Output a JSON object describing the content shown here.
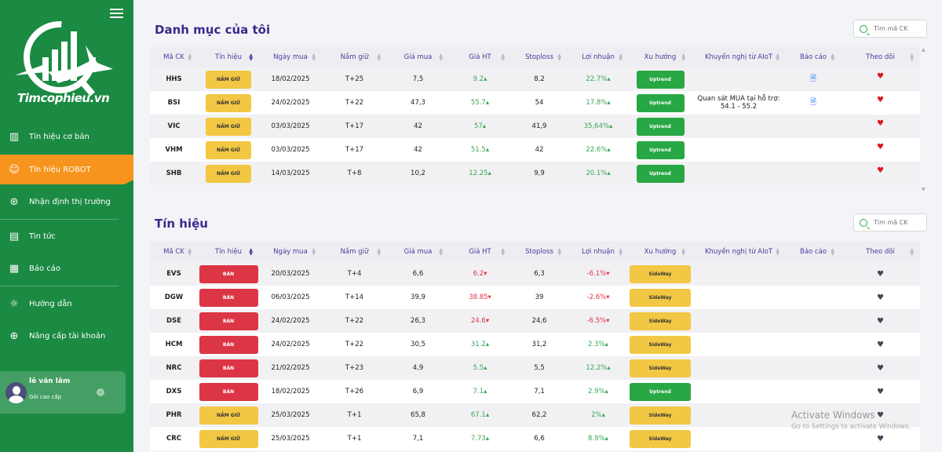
{
  "brand": {
    "name": "Timcophieu.vn"
  },
  "sidebar": {
    "items": [
      {
        "label": "Tín hiệu cơ bản",
        "icon": "bar-chart-icon"
      },
      {
        "label": "Tín hiệu ROBOT",
        "icon": "robot-icon",
        "active": true
      },
      {
        "label": "Nhận định thị trường",
        "icon": "market-icon"
      },
      {
        "label": "Tin tức",
        "icon": "news-icon"
      },
      {
        "label": "Báo cáo",
        "icon": "report-icon"
      },
      {
        "label": "Hướng dẫn",
        "icon": "lightbulb-icon"
      },
      {
        "label": "Nâng cấp tài khoản",
        "icon": "upgrade-icon"
      }
    ],
    "user": {
      "name": "lê văn lâm",
      "plan": "Gói cao cấp"
    }
  },
  "colors": {
    "sidebar": "#1b8a43",
    "active": "#f7941d",
    "title": "#3b2a8c",
    "up": "#3aa655",
    "down": "#e0334a"
  },
  "columns": [
    "Mã CK",
    "Tín hiệu",
    "Ngày mua",
    "Nắm giữ",
    "Giá mua",
    "Giá HT",
    "Stoploss",
    "Lợi nhuận",
    "Xu hướng",
    "Khuyến nghị từ AIoT",
    "Báo cáo",
    "Theo dõi"
  ],
  "portfolio": {
    "title": "Danh mục của tôi",
    "search_placeholder": "Tìm mã CK",
    "rows": [
      {
        "ck": "HHS",
        "signal": "NẮM GIỮ",
        "date": "18/02/2025",
        "hold": "T+25",
        "buy": "7,5",
        "price": "9.2",
        "stop": "8,2",
        "profit": "22.7%",
        "dir": "up",
        "trend": "Uptrend",
        "advice": "",
        "report": true
      },
      {
        "ck": "BSI",
        "signal": "NẮM GIỮ",
        "date": "24/02/2025",
        "hold": "T+22",
        "buy": "47,3",
        "price": "55.7",
        "stop": "54",
        "profit": "17.8%",
        "dir": "up",
        "trend": "Uptrend",
        "advice": "Quan sát MUA tại hỗ trợ: 54.1 - 55.2",
        "report": true
      },
      {
        "ck": "VIC",
        "signal": "NẮM GIỮ",
        "date": "03/03/2025",
        "hold": "T+17",
        "buy": "42",
        "price": "57",
        "stop": "41,9",
        "profit": "35,64%",
        "dir": "up",
        "trend": "Uptrend",
        "advice": "",
        "report": false
      },
      {
        "ck": "VHM",
        "signal": "NẮM GIỮ",
        "date": "03/03/2025",
        "hold": "T+17",
        "buy": "42",
        "price": "51.5",
        "stop": "42",
        "profit": "22.6%",
        "dir": "up",
        "trend": "Uptrend",
        "advice": "",
        "report": false
      },
      {
        "ck": "SHB",
        "signal": "NẮM GIỮ",
        "date": "14/03/2025",
        "hold": "T+8",
        "buy": "10,2",
        "price": "12.25",
        "stop": "9,9",
        "profit": "20.1%",
        "dir": "up",
        "trend": "Uptrend",
        "advice": "",
        "report": false
      }
    ]
  },
  "signals": {
    "title": "Tín hiệu",
    "search_placeholder": "Tìm mã CK",
    "rows": [
      {
        "ck": "EVS",
        "signal": "BÁN",
        "date": "20/03/2025",
        "hold": "T+4",
        "buy": "6,6",
        "price": "6.2",
        "stop": "6,3",
        "profit": "-6.1%",
        "dir": "down",
        "trend": "SideWay",
        "advice": ""
      },
      {
        "ck": "DGW",
        "signal": "BÁN",
        "date": "06/03/2025",
        "hold": "T+14",
        "buy": "39,9",
        "price": "38.85",
        "stop": "39",
        "profit": "-2.6%",
        "dir": "down",
        "trend": "SideWay",
        "advice": ""
      },
      {
        "ck": "DSE",
        "signal": "BÁN",
        "date": "24/02/2025",
        "hold": "T+22",
        "buy": "26,3",
        "price": "24.6",
        "stop": "24,6",
        "profit": "-6.5%",
        "dir": "down",
        "trend": "SideWay",
        "advice": ""
      },
      {
        "ck": "HCM",
        "signal": "BÁN",
        "date": "24/02/2025",
        "hold": "T+22",
        "buy": "30,5",
        "price": "31.2",
        "stop": "31,2",
        "profit": "2.3%",
        "dir": "up",
        "trend": "SideWay",
        "advice": ""
      },
      {
        "ck": "NRC",
        "signal": "BÁN",
        "date": "21/02/2025",
        "hold": "T+23",
        "buy": "4,9",
        "price": "5.5",
        "stop": "5,5",
        "profit": "12.2%",
        "dir": "up",
        "trend": "SideWay",
        "advice": ""
      },
      {
        "ck": "DXS",
        "signal": "BÁN",
        "date": "18/02/2025",
        "hold": "T+26",
        "buy": "6,9",
        "price": "7.1",
        "stop": "7,1",
        "profit": "2.9%",
        "dir": "up",
        "trend": "Uptrend",
        "advice": ""
      },
      {
        "ck": "PHR",
        "signal": "NẮM GIỮ",
        "date": "25/03/2025",
        "hold": "T+1",
        "buy": "65,8",
        "price": "67.1",
        "stop": "62,2",
        "profit": "2%",
        "dir": "up",
        "trend": "SideWay",
        "advice": ""
      },
      {
        "ck": "CRC",
        "signal": "NẮM GIỮ",
        "date": "25/03/2025",
        "hold": "T+1",
        "buy": "7,1",
        "price": "7.73",
        "stop": "6,6",
        "profit": "8.9%",
        "dir": "up",
        "trend": "SideWay",
        "advice": ""
      }
    ]
  },
  "watermark": {
    "line1": "Activate Windows",
    "line2": "Go to Settings to activate Windows."
  }
}
